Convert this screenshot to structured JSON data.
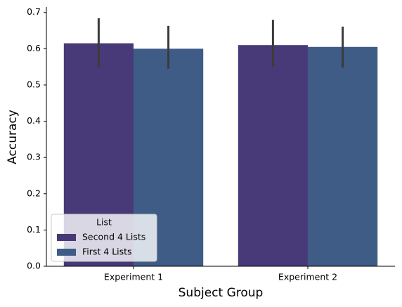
{
  "chart_data": {
    "type": "bar",
    "categories": [
      "Experiment 1",
      "Experiment 2"
    ],
    "series": [
      {
        "name": "Second 4 Lists",
        "color": "#483a78",
        "values": [
          0.615,
          0.61
        ],
        "ci_low": [
          0.548,
          0.55
        ],
        "ci_high": [
          0.684,
          0.68
        ]
      },
      {
        "name": "First 4 Lists",
        "color": "#3e5c86",
        "values": [
          0.6,
          0.605
        ],
        "ci_low": [
          0.545,
          0.548
        ],
        "ci_high": [
          0.663,
          0.661
        ]
      }
    ],
    "xlabel": "Subject Group",
    "ylabel": "Accuracy",
    "ylim": [
      0,
      0.715
    ],
    "yticks": [
      {
        "value": 0,
        "label": "0.0"
      },
      {
        "value": 0.1,
        "label": "0.1"
      },
      {
        "value": 0.2,
        "label": "0.2"
      },
      {
        "value": 0.3,
        "label": "0.3"
      },
      {
        "value": 0.4,
        "label": "0.4"
      },
      {
        "value": 0.5,
        "label": "0.5"
      },
      {
        "value": 0.6,
        "label": "0.6"
      },
      {
        "value": 0.7,
        "label": "0.7"
      }
    ],
    "legend": {
      "title": "List",
      "position": "lower left"
    },
    "errorbar_color": "#3b3b3b"
  }
}
